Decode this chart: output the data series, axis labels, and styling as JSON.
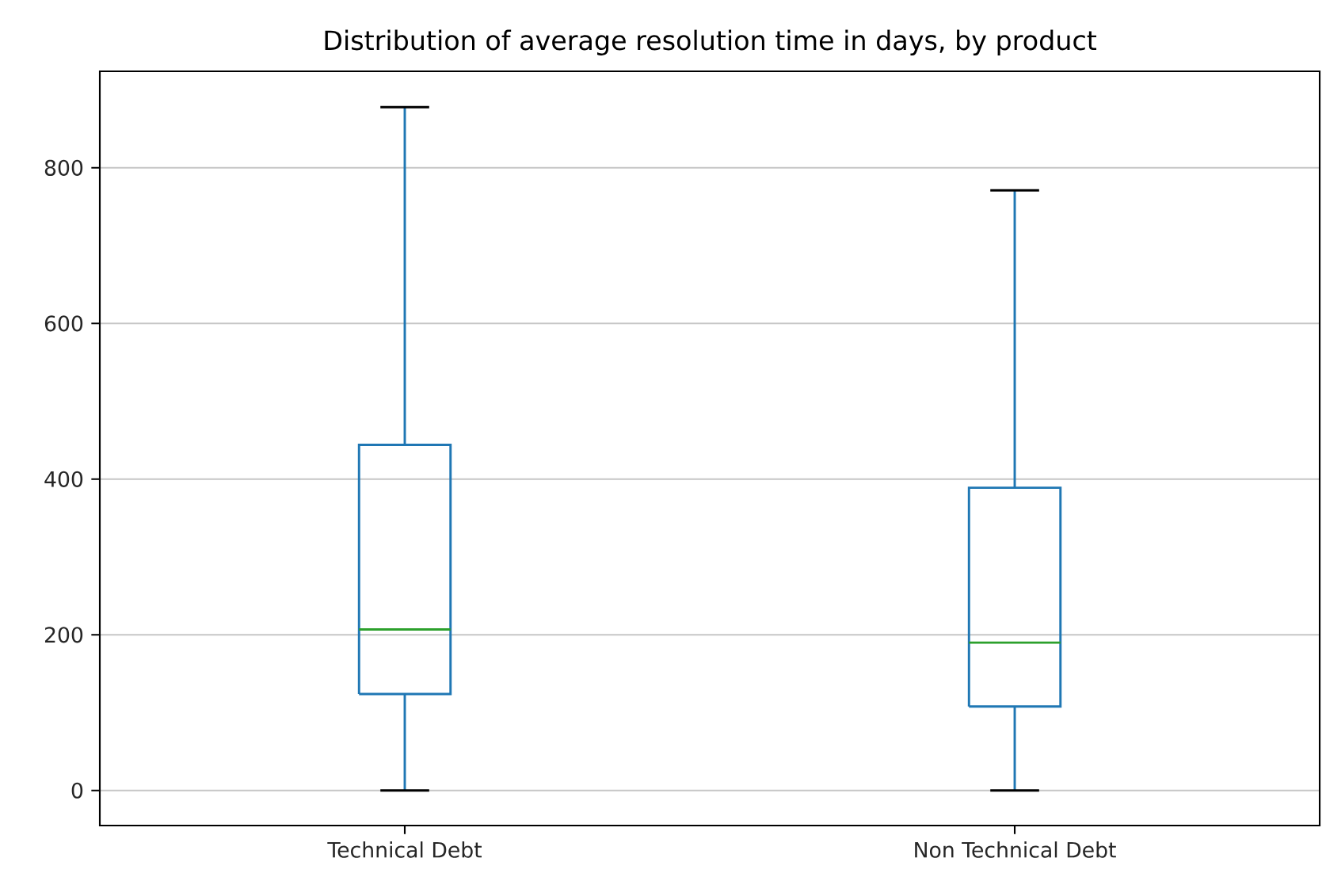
{
  "chart_data": {
    "type": "box",
    "title": "Distribution of average resolution time in days, by product",
    "categories": [
      "Technical Debt",
      "Non Technical Debt"
    ],
    "series": [
      {
        "color": "#1f77b4",
        "boxes": [
          {
            "low": 0,
            "q1": 124,
            "median": 207,
            "q3": 444,
            "high": 878
          },
          {
            "low": 0,
            "q1": 108,
            "median": 190,
            "q3": 389,
            "high": 771
          }
        ]
      }
    ],
    "ylim": [
      -45,
      924
    ],
    "yticks": [
      0,
      200,
      400,
      600,
      800
    ],
    "grid": "y"
  }
}
